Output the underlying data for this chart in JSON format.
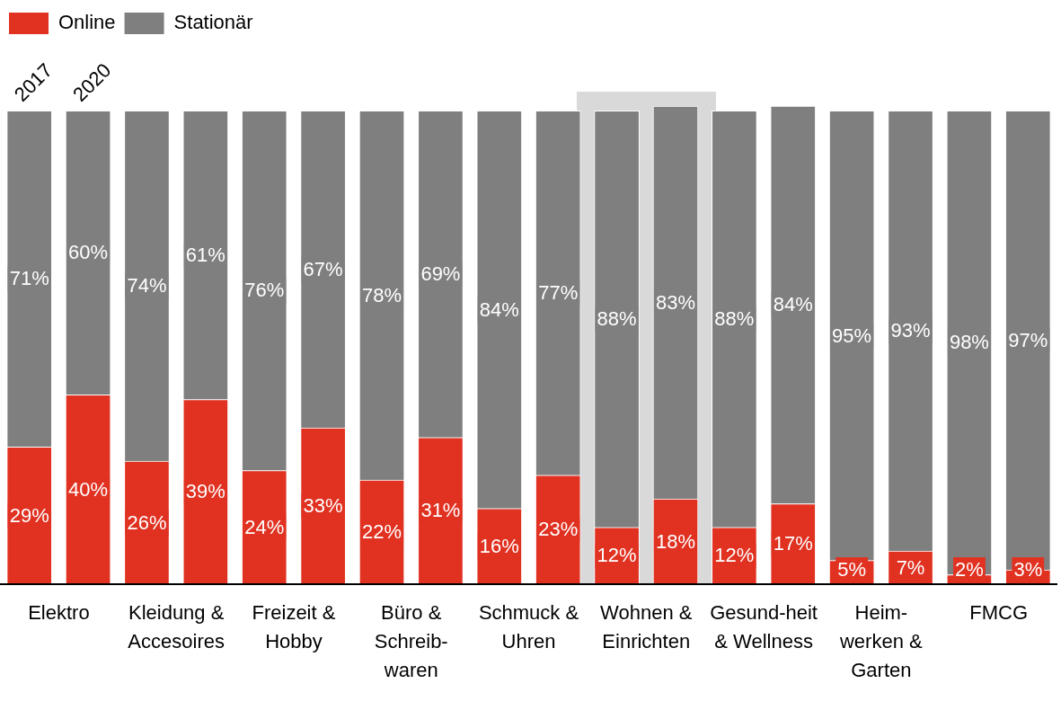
{
  "chart_data": {
    "type": "bar",
    "stacked": true,
    "legend": "top left",
    "tick_labels": "x",
    "ylim": [
      0,
      101
    ],
    "categories": [
      "Elektro",
      null,
      "Kleidung & Accesoires",
      null,
      "Freizeit & Hobby",
      null,
      "Büro & Schreib-waren",
      null,
      "Schmuck & Uhren",
      null,
      "Wohnen & Einrichten",
      null,
      "Gesund-heit & Wellness",
      null,
      "Heim-werken & Garten",
      null,
      "FMCG",
      null
    ],
    "series": [
      {
        "name": "Online",
        "color": "#e03121",
        "values": [
          29,
          40,
          26,
          39,
          24,
          33,
          22,
          31,
          16,
          23,
          12,
          18,
          12,
          17,
          5,
          7,
          2,
          3
        ],
        "value_labels": [
          "29%",
          "40%",
          "26%",
          "39%",
          "24%",
          "33%",
          "22%",
          "31%",
          "16%",
          "23%",
          "12%",
          "18%",
          "12%",
          "17%",
          "5%",
          "7%",
          "2%",
          "3%"
        ]
      },
      {
        "name": "Stationär",
        "color": "#7f7f7f",
        "values": [
          71,
          60,
          74,
          61,
          76,
          67,
          78,
          69,
          84,
          77,
          88,
          83,
          88,
          84,
          95,
          93,
          98,
          97
        ],
        "value_labels": [
          "71%",
          "60%",
          "74%",
          "61%",
          "76%",
          "67%",
          "78%",
          "69%",
          "84%",
          "77%",
          "88%",
          "83%",
          "88%",
          "84%",
          "95%",
          "93%",
          "98%",
          "97%"
        ]
      }
    ],
    "annotations": [
      "2017",
      "2020"
    ]
  }
}
